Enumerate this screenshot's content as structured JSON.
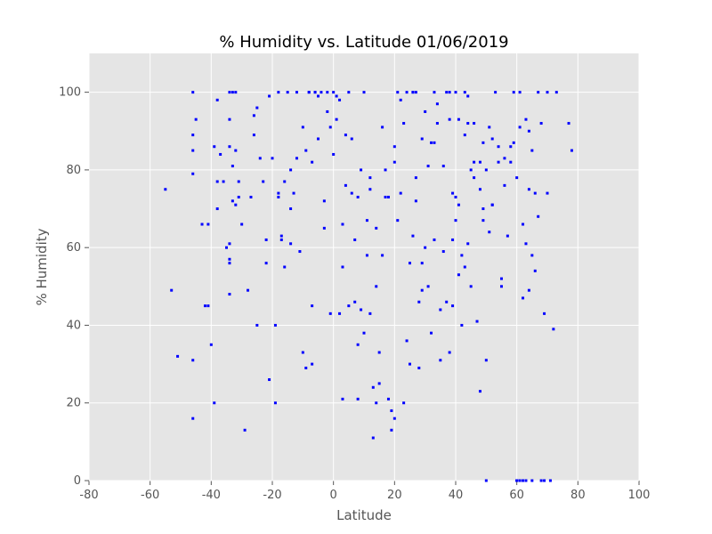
{
  "chart_data": {
    "type": "scatter",
    "title": "% Humidity vs. Latitude 01/06/2019",
    "x_label": "Latitude",
    "y_label": "% Humidity",
    "color": "#0000ff",
    "grid": true,
    "xlim": [
      -80,
      100
    ],
    "xticks": [
      -80,
      -60,
      -40,
      -20,
      0,
      20,
      40,
      60,
      80,
      100
    ],
    "ylim": [
      0,
      110
    ],
    "yticks": [
      0,
      20,
      40,
      60,
      80,
      100
    ],
    "x": [
      -55,
      -53,
      -51,
      -46,
      -46,
      -46,
      -46,
      -46,
      -45,
      -46,
      -43,
      -42,
      -41,
      -41,
      -40,
      -39,
      -38,
      -39,
      -38,
      -38,
      -37,
      -36,
      -35,
      -34,
      -34,
      -34,
      -33,
      -32,
      -34,
      -34,
      -34,
      -34,
      -33,
      -33,
      -32,
      -32,
      -31,
      -31,
      -30,
      -29,
      -28,
      -27,
      -26,
      -26,
      -25,
      -24,
      -23,
      -22,
      -21,
      -21,
      -20,
      -19,
      -19,
      -18,
      -18,
      -17,
      -17,
      -16,
      -16,
      -15,
      -14,
      -14,
      -14,
      -13,
      -12,
      -11,
      -10,
      -9,
      -9,
      -8,
      -7,
      -7,
      -7,
      -6,
      -5,
      -4,
      -3,
      -3,
      -2,
      -1,
      0,
      1,
      1,
      2,
      3,
      3,
      4,
      5,
      5,
      6,
      7,
      8,
      8,
      9,
      9,
      10,
      10,
      11,
      12,
      12,
      13,
      13,
      14,
      14,
      15,
      15,
      16,
      16,
      17,
      18,
      19,
      19,
      20,
      20,
      21,
      21,
      22,
      22,
      23,
      24,
      25,
      25,
      26,
      26,
      27,
      27,
      28,
      28,
      29,
      29,
      30,
      31,
      32,
      32,
      33,
      33,
      34,
      35,
      35,
      36,
      37,
      37,
      38,
      38,
      39,
      39,
      40,
      40,
      41,
      41,
      42,
      42,
      43,
      43,
      44,
      44,
      45,
      45,
      46,
      47,
      48,
      48,
      49,
      49,
      50,
      50,
      51,
      51,
      52,
      53,
      54,
      55,
      55,
      56,
      57,
      58,
      59,
      60,
      60,
      61,
      62,
      62,
      63,
      63,
      64,
      64,
      65,
      65,
      66,
      66,
      67,
      67,
      68,
      68,
      69,
      70,
      70,
      71,
      72,
      73,
      77,
      78,
      63,
      65,
      62,
      61,
      60,
      59,
      64,
      69,
      -10,
      -8,
      -5,
      -2,
      0,
      2,
      4,
      6,
      8,
      11,
      14,
      17,
      20,
      23,
      26,
      29,
      31,
      34,
      36,
      39,
      41,
      44,
      46,
      48,
      50,
      52,
      54,
      56,
      58,
      61,
      24,
      27,
      30,
      33,
      38,
      40,
      43,
      46,
      49,
      52,
      -25,
      -22,
      -18,
      -12,
      -6,
      -1,
      3,
      7,
      12,
      18
    ],
    "values": [
      75,
      49,
      32,
      31,
      16,
      79,
      89,
      100,
      93,
      85,
      66,
      45,
      45,
      66,
      35,
      86,
      77,
      20,
      70,
      98,
      84,
      77,
      60,
      86,
      93,
      100,
      100,
      100,
      61,
      57,
      56,
      48,
      81,
      72,
      71,
      85,
      73,
      77,
      66,
      13,
      49,
      73,
      89,
      94,
      96,
      83,
      77,
      56,
      26,
      99,
      83,
      40,
      20,
      74,
      73,
      63,
      62,
      55,
      77,
      100,
      80,
      70,
      61,
      74,
      83,
      59,
      33,
      85,
      29,
      100,
      82,
      30,
      45,
      100,
      99,
      100,
      72,
      65,
      100,
      91,
      100,
      93,
      99,
      43,
      66,
      55,
      89,
      100,
      45,
      88,
      62,
      21,
      35,
      44,
      80,
      38,
      100,
      58,
      75,
      43,
      24,
      11,
      20,
      50,
      33,
      25,
      58,
      91,
      73,
      21,
      18,
      13,
      16,
      86,
      67,
      100,
      98,
      74,
      20,
      36,
      30,
      56,
      63,
      100,
      72,
      100,
      46,
      29,
      49,
      56,
      95,
      50,
      38,
      87,
      62,
      100,
      92,
      31,
      44,
      59,
      46,
      100,
      33,
      93,
      74,
      45,
      100,
      67,
      53,
      71,
      40,
      58,
      89,
      100,
      61,
      99,
      50,
      80,
      82,
      41,
      23,
      75,
      87,
      67,
      0,
      31,
      64,
      91,
      71,
      100,
      82,
      50,
      52,
      76,
      63,
      86,
      100,
      78,
      0,
      100,
      47,
      66,
      93,
      61,
      75,
      49,
      85,
      58,
      54,
      74,
      68,
      100,
      92,
      0,
      43,
      74,
      100,
      0,
      39,
      100,
      92,
      85,
      0,
      0,
      0,
      0,
      0,
      87,
      90,
      0,
      91,
      100,
      88,
      95,
      84,
      98,
      76,
      74,
      73,
      67,
      65,
      80,
      82,
      92,
      100,
      88,
      81,
      97,
      81,
      62,
      93,
      92,
      78,
      82,
      80,
      71,
      86,
      83,
      82,
      91,
      100,
      78,
      60,
      87,
      100,
      73,
      55,
      92,
      70,
      88,
      40,
      62,
      100,
      100,
      100,
      43,
      21,
      46,
      78,
      73
    ]
  }
}
